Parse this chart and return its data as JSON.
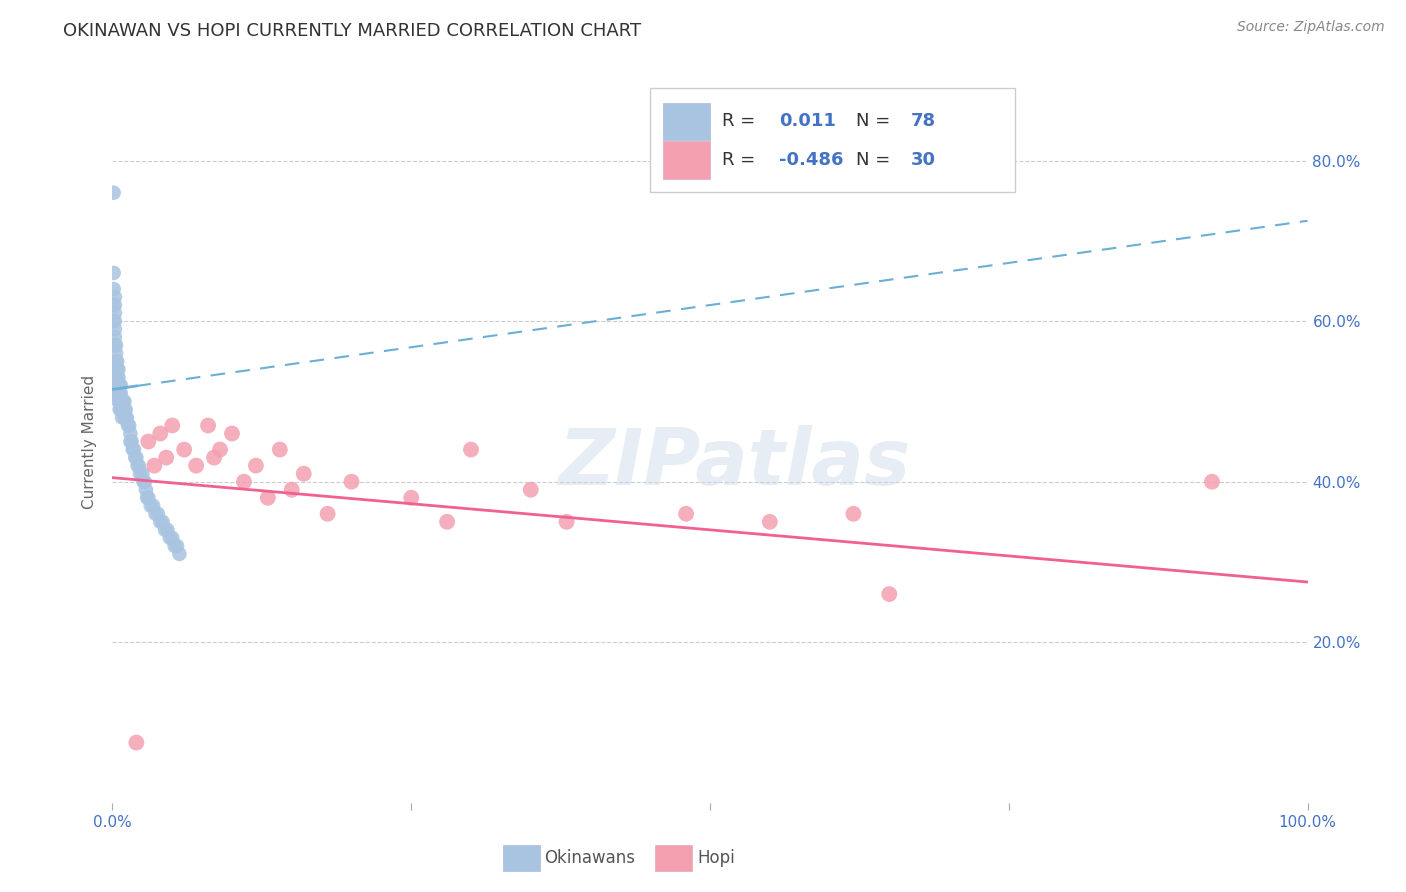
{
  "title": "OKINAWAN VS HOPI CURRENTLY MARRIED CORRELATION CHART",
  "source": "Source: ZipAtlas.com",
  "ylabel": "Currently Married",
  "legend_okinawan_R": "0.011",
  "legend_okinawan_N": "78",
  "legend_hopi_R": "-0.486",
  "legend_hopi_N": "30",
  "okinawan_color": "#a8c4e0",
  "hopi_color": "#f4a0b0",
  "okinawan_line_color": "#6baed6",
  "hopi_line_color": "#f06090",
  "background_color": "#ffffff",
  "watermark": "ZIPatlas",
  "okinawan_x": [
    0.001,
    0.001,
    0.001,
    0.001,
    0.001,
    0.002,
    0.002,
    0.002,
    0.002,
    0.002,
    0.002,
    0.002,
    0.003,
    0.003,
    0.003,
    0.003,
    0.003,
    0.003,
    0.004,
    0.004,
    0.004,
    0.004,
    0.004,
    0.005,
    0.005,
    0.005,
    0.005,
    0.005,
    0.006,
    0.006,
    0.006,
    0.006,
    0.007,
    0.007,
    0.007,
    0.007,
    0.008,
    0.008,
    0.008,
    0.009,
    0.009,
    0.01,
    0.01,
    0.01,
    0.011,
    0.011,
    0.012,
    0.013,
    0.014,
    0.015,
    0.015,
    0.016,
    0.017,
    0.018,
    0.019,
    0.02,
    0.021,
    0.022,
    0.023,
    0.025,
    0.026,
    0.027,
    0.028,
    0.029,
    0.03,
    0.032,
    0.034,
    0.036,
    0.038,
    0.04,
    0.042,
    0.044,
    0.046,
    0.048,
    0.05,
    0.052,
    0.054,
    0.056
  ],
  "okinawan_y": [
    0.76,
    0.66,
    0.64,
    0.62,
    0.6,
    0.63,
    0.62,
    0.61,
    0.6,
    0.59,
    0.58,
    0.57,
    0.57,
    0.56,
    0.55,
    0.54,
    0.53,
    0.52,
    0.55,
    0.54,
    0.53,
    0.52,
    0.51,
    0.54,
    0.53,
    0.52,
    0.51,
    0.5,
    0.52,
    0.51,
    0.5,
    0.49,
    0.52,
    0.51,
    0.5,
    0.49,
    0.5,
    0.49,
    0.48,
    0.5,
    0.49,
    0.5,
    0.49,
    0.48,
    0.49,
    0.48,
    0.48,
    0.47,
    0.47,
    0.46,
    0.45,
    0.45,
    0.44,
    0.44,
    0.43,
    0.43,
    0.42,
    0.42,
    0.41,
    0.41,
    0.4,
    0.4,
    0.39,
    0.38,
    0.38,
    0.37,
    0.37,
    0.36,
    0.36,
    0.35,
    0.35,
    0.34,
    0.34,
    0.33,
    0.33,
    0.32,
    0.32,
    0.31
  ],
  "hopi_x": [
    0.02,
    0.03,
    0.035,
    0.04,
    0.045,
    0.05,
    0.06,
    0.07,
    0.08,
    0.085,
    0.09,
    0.1,
    0.11,
    0.12,
    0.13,
    0.14,
    0.15,
    0.16,
    0.18,
    0.2,
    0.25,
    0.28,
    0.3,
    0.35,
    0.38,
    0.48,
    0.55,
    0.62,
    0.65,
    0.92
  ],
  "hopi_y": [
    0.075,
    0.45,
    0.42,
    0.46,
    0.43,
    0.47,
    0.44,
    0.42,
    0.47,
    0.43,
    0.44,
    0.46,
    0.4,
    0.42,
    0.38,
    0.44,
    0.39,
    0.41,
    0.36,
    0.4,
    0.38,
    0.35,
    0.44,
    0.39,
    0.35,
    0.36,
    0.35,
    0.36,
    0.26,
    0.4
  ],
  "xlim": [
    0.0,
    1.0
  ],
  "ylim": [
    0.0,
    0.9
  ],
  "yticks": [
    0.2,
    0.4,
    0.6,
    0.8
  ],
  "ytick_labels": [
    "20.0%",
    "40.0%",
    "60.0%",
    "80.0%"
  ],
  "xtick_positions": [
    0.0,
    0.25,
    0.5,
    0.75,
    1.0
  ],
  "okinawan_trend_y_start": 0.515,
  "okinawan_trend_y_end": 0.725,
  "hopi_trend_y_start": 0.405,
  "hopi_trend_y_end": 0.275,
  "title_fontsize": 13,
  "axis_label_fontsize": 11,
  "tick_fontsize": 11,
  "source_fontsize": 10,
  "grid_color": "#cccccc",
  "tick_color": "#4472c4"
}
